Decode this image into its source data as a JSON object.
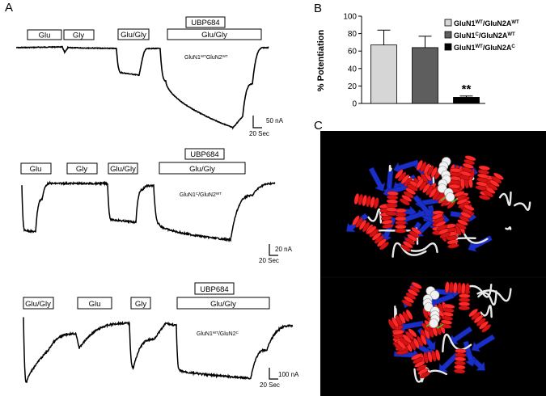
{
  "panels": {
    "a": {
      "letter": "A",
      "rows": [
        {
          "bars": [
            "Glu",
            "Gly",
            "Glu/Gly",
            "Glu/Gly"
          ],
          "drug": "UBP684",
          "construct": {
            "prefix": "GluN1",
            "sup1": "WT",
            "mid": "GluN2",
            "sup2": "WT"
          },
          "scale_y": "50 nA",
          "scale_x": "20 Sec"
        },
        {
          "bars": [
            "Glu",
            "Gly",
            "Glu/Gly",
            "Glu/Gly"
          ],
          "drug": "UBP684",
          "construct": {
            "prefix": "GluN1",
            "sup1": "C",
            "mid": "/GluN2",
            "sup2": "WT"
          },
          "scale_y": "20 nA",
          "scale_x": "20 Sec"
        },
        {
          "bars": [
            "Glu/Gly",
            "Glu",
            "Gly",
            "Glu/Gly"
          ],
          "drug": "UBP684",
          "construct": {
            "prefix": "GluN1",
            "sup1": "WT",
            "mid": "/GluN2",
            "sup2": "C"
          },
          "scale_y": "100 nA",
          "scale_x": "20 Sec"
        }
      ]
    },
    "b": {
      "letter": "B",
      "chart_data": {
        "type": "bar",
        "categories": [
          "GluN1WT/GluN2AWT",
          "GluN1C/GluN2AWT",
          "GluN1WT/GluN2AC"
        ],
        "values": [
          67,
          64,
          7
        ],
        "errors": [
          17,
          13,
          1.5
        ],
        "colors": [
          "#d6d6d6",
          "#5e5e5e",
          "#000000"
        ],
        "ylabel": "% Potentiation",
        "ylim": [
          0,
          100
        ],
        "yticks": [
          "0",
          "20",
          "40",
          "60",
          "80",
          "100"
        ],
        "annotation": "**",
        "legend_position": "top-right",
        "legend": [
          {
            "base": "GluN1",
            "sup1": "WT",
            "mid": "/GluN2A",
            "sup2": "WT"
          },
          {
            "base": "GluN1",
            "sup1": "C",
            "mid": "/GluN2A",
            "sup2": "WT"
          },
          {
            "base": "GluN1",
            "sup1": "WT",
            "mid": "/GluN2A",
            "sup2": "C"
          }
        ]
      }
    },
    "c": {
      "letter": "C"
    }
  }
}
